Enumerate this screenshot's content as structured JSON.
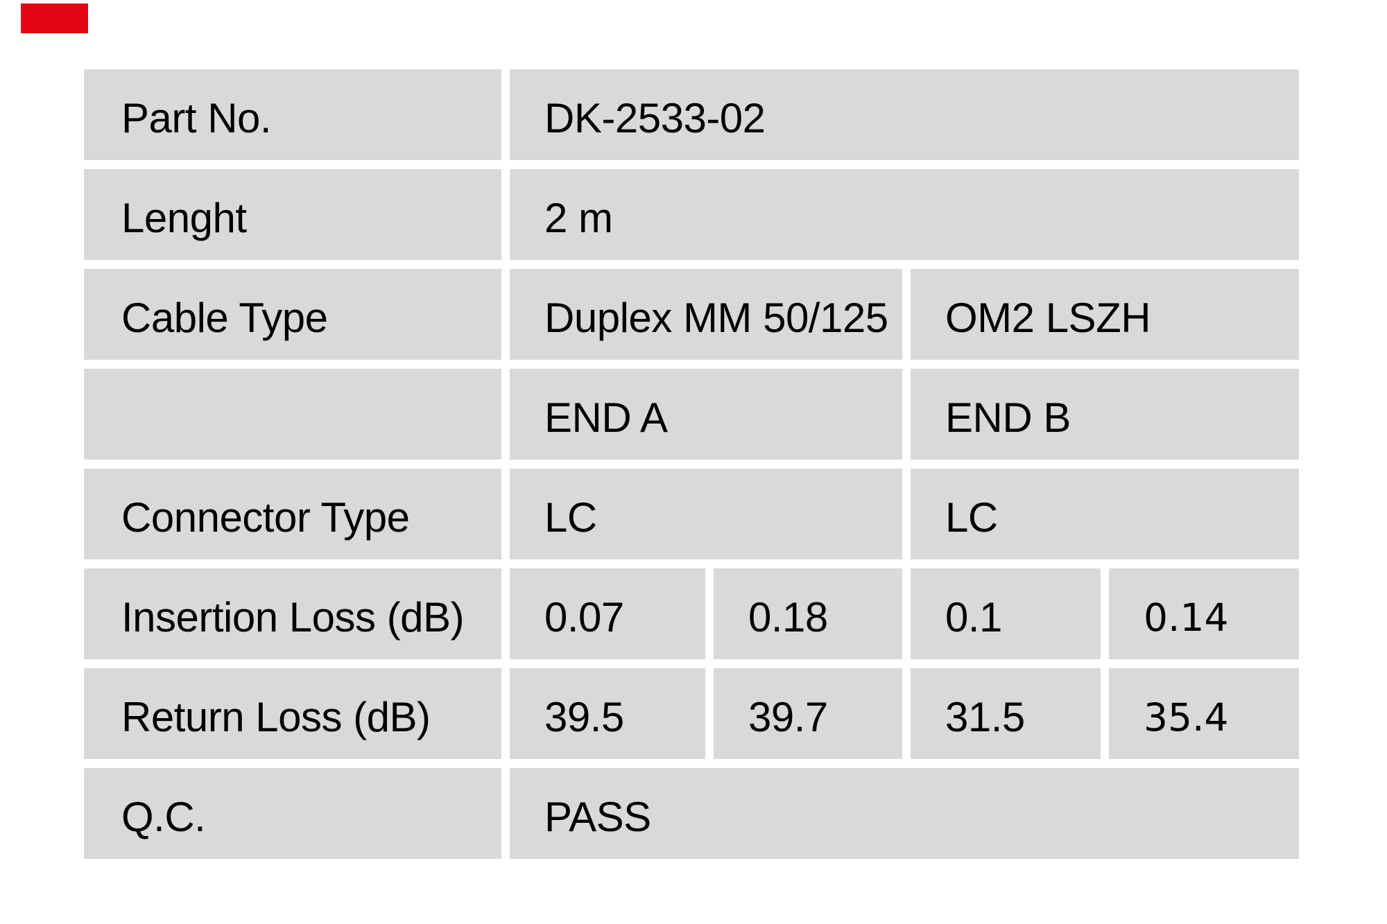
{
  "colors": {
    "brand_red": "#e30613",
    "cell_background": "#d9d9d9",
    "page_background": "#ffffff",
    "text": "#000000"
  },
  "brand": {
    "mark": "red-rectangle-logo"
  },
  "table": {
    "rows": [
      {
        "label": "Part No.",
        "cells": [
          {
            "text": "DK-2533-02"
          }
        ]
      },
      {
        "label": "Lenght",
        "cells": [
          {
            "text": "2 m"
          }
        ]
      },
      {
        "label": "Cable Type",
        "cells": [
          {
            "text": "Duplex MM 50/125"
          },
          {
            "text": "OM2 LSZH"
          }
        ]
      },
      {
        "label": "",
        "cells": [
          {
            "text": "END A"
          },
          {
            "text": "END B"
          }
        ]
      },
      {
        "label": "Connector Type",
        "cells": [
          {
            "text": "LC"
          },
          {
            "text": "LC"
          }
        ]
      },
      {
        "label": "Insertion Loss (dB)",
        "cells": [
          {
            "text": "0.07"
          },
          {
            "text": "0.18"
          },
          {
            "text": "0.1"
          },
          {
            "text": "0.14"
          }
        ]
      },
      {
        "label": "Return Loss (dB)",
        "cells": [
          {
            "text": "39.5"
          },
          {
            "text": "39.7"
          },
          {
            "text": "31.5"
          },
          {
            "text": "35.4"
          }
        ]
      },
      {
        "label": "Q.C.",
        "cells": [
          {
            "text": "PASS"
          }
        ]
      }
    ]
  }
}
